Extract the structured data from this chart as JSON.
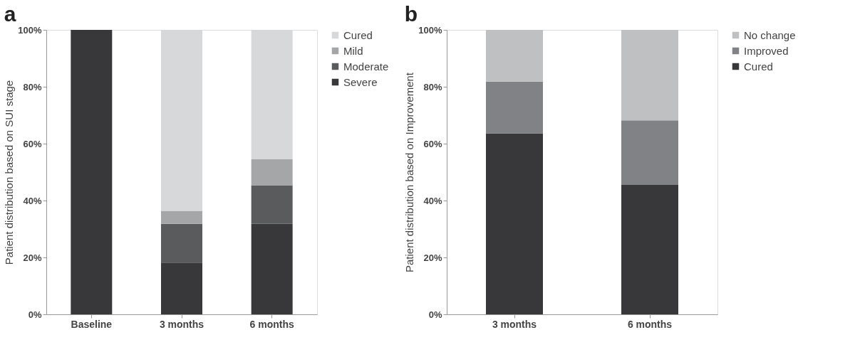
{
  "chart_data": [
    {
      "type": "bar",
      "title": "a",
      "ylabel": "Patient distribution based on SUI stage",
      "categories": [
        "Baseline",
        "3 months",
        "6 months"
      ],
      "stacked": true,
      "legend": "right",
      "grid": false,
      "ylim": [
        0,
        100
      ],
      "yticks": [
        {
          "value": 0,
          "label": "0%"
        },
        {
          "value": 20,
          "label": "20%"
        },
        {
          "value": 40,
          "label": "40%"
        },
        {
          "value": 60,
          "label": "60%"
        },
        {
          "value": 80,
          "label": "80%"
        },
        {
          "value": 100,
          "label": "100%"
        }
      ],
      "series": [
        {
          "name": "Severe",
          "color": "#38383a",
          "values": [
            100,
            18.2,
            31.8
          ]
        },
        {
          "name": "Moderate",
          "color": "#5a5b5d",
          "values": [
            0,
            13.6,
            13.6
          ]
        },
        {
          "name": "Mild",
          "color": "#a5a6a8",
          "values": [
            0,
            4.6,
            9.1
          ]
        },
        {
          "name": "Cured",
          "color": "#d7d8da",
          "values": [
            0,
            63.6,
            45.5
          ]
        }
      ]
    },
    {
      "type": "bar",
      "title": "b",
      "ylabel": "Patient distribution based on Improvement",
      "categories": [
        "3 months",
        "6 months"
      ],
      "stacked": true,
      "legend": "right",
      "grid": false,
      "ylim": [
        0,
        100
      ],
      "yticks": [
        {
          "value": 0,
          "label": "0%"
        },
        {
          "value": 20,
          "label": "20%"
        },
        {
          "value": 40,
          "label": "40%"
        },
        {
          "value": 60,
          "label": "60%"
        },
        {
          "value": 80,
          "label": "80%"
        },
        {
          "value": 100,
          "label": "100%"
        }
      ],
      "series": [
        {
          "name": "Cured",
          "color": "#38383a",
          "values": [
            63.6,
            45.5
          ]
        },
        {
          "name": "Improved",
          "color": "#818285",
          "values": [
            18.2,
            22.7
          ]
        },
        {
          "name": "No change",
          "color": "#bfc0c2",
          "values": [
            18.2,
            31.8
          ]
        }
      ]
    }
  ]
}
